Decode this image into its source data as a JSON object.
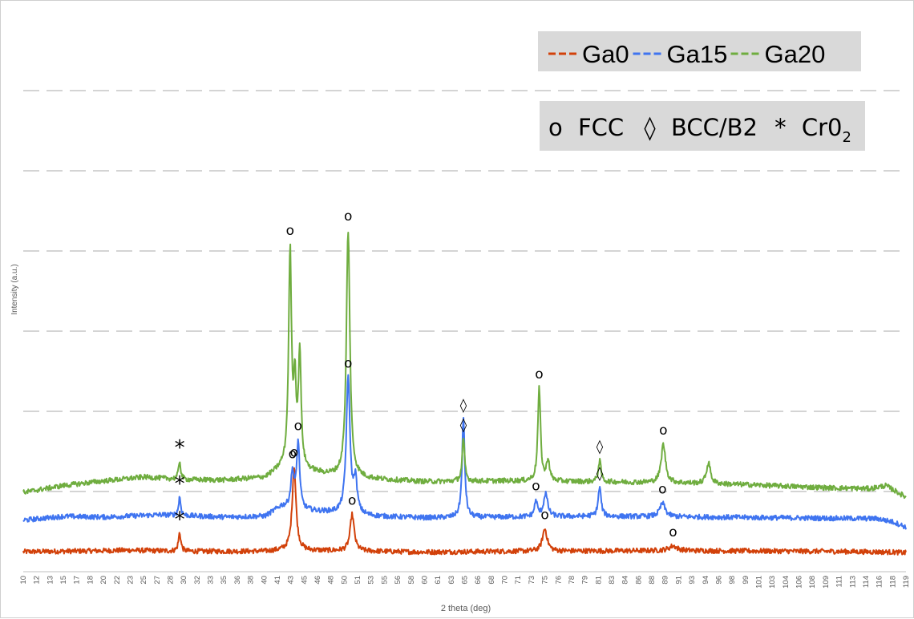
{
  "chart_data": {
    "type": "line",
    "xlabel": "2 theta (deg)",
    "ylabel": "Intensity (a.u.)",
    "x_ticks": [
      "10",
      "12",
      "13",
      "15",
      "17",
      "18",
      "20",
      "22",
      "23",
      "25",
      "27",
      "28",
      "30",
      "32",
      "33",
      "35",
      "36",
      "38",
      "40",
      "41",
      "43",
      "45",
      "46",
      "48",
      "50",
      "51",
      "53",
      "55",
      "56",
      "58",
      "60",
      "61",
      "63",
      "65",
      "66",
      "68",
      "70",
      "71",
      "73",
      "75",
      "76",
      "78",
      "79",
      "81",
      "83",
      "84",
      "86",
      "88",
      "89",
      "91",
      "93",
      "94",
      "96",
      "98",
      "99",
      "101",
      "103",
      "104",
      "106",
      "108",
      "109",
      "111",
      "113",
      "114",
      "116",
      "118",
      "119"
    ],
    "xlim": [
      10,
      119.5
    ],
    "grid": true,
    "legend": {
      "placement": "top-right",
      "items": [
        {
          "name": "Ga0",
          "color": "#d2410a"
        },
        {
          "name": "Ga15",
          "color": "#3f74f0"
        },
        {
          "name": "Ga20",
          "color": "#6fad3f"
        }
      ]
    },
    "phase_legend": {
      "fcc_symbol": "o",
      "fcc_label": "FCC",
      "bcc_symbol": "◊",
      "bcc_label": "BCC/B2",
      "cro2_symbol": "*",
      "cro2_label": "Cr0",
      "cro2_sub": "2"
    },
    "series": [
      {
        "name": "Ga0",
        "color": "#d2410a",
        "baseline": 0.0,
        "background": [
          [
            10,
            0.06
          ],
          [
            18,
            0.08
          ],
          [
            23,
            0.1
          ],
          [
            30,
            0.07
          ],
          [
            40,
            0.07
          ],
          [
            43,
            0.11
          ],
          [
            45,
            0.09
          ],
          [
            50,
            0.08
          ],
          [
            60,
            0.05
          ],
          [
            70,
            0.07
          ],
          [
            80,
            0.08
          ],
          [
            90,
            0.09
          ],
          [
            100,
            0.08
          ],
          [
            110,
            0.07
          ],
          [
            118,
            0.05
          ],
          [
            119.5,
            0.03
          ]
        ],
        "peaks": [
          {
            "x": 29.4,
            "h": 0.48,
            "w": 0.18,
            "marker": "*"
          },
          {
            "x": 43.6,
            "h": 2.18,
            "w": 0.28,
            "marker": "o"
          },
          {
            "x": 50.8,
            "h": 0.95,
            "w": 0.3,
            "marker": "o"
          },
          {
            "x": 74.7,
            "h": 0.58,
            "w": 0.35,
            "marker": "o"
          },
          {
            "x": 90.6,
            "h": 0.12,
            "w": 0.6,
            "marker": "o"
          }
        ]
      },
      {
        "name": "Ga15",
        "color": "#3f74f0",
        "baseline": 0.88,
        "background": [
          [
            10,
            0.0
          ],
          [
            15,
            0.1
          ],
          [
            20,
            0.08
          ],
          [
            27,
            0.14
          ],
          [
            35,
            0.08
          ],
          [
            40,
            0.1
          ],
          [
            42,
            0.35
          ],
          [
            45,
            0.25
          ],
          [
            48,
            0.2
          ],
          [
            53,
            0.1
          ],
          [
            60,
            0.06
          ],
          [
            70,
            0.08
          ],
          [
            80,
            0.1
          ],
          [
            90,
            0.09
          ],
          [
            100,
            0.07
          ],
          [
            110,
            0.05
          ],
          [
            116,
            0.04
          ],
          [
            118,
            -0.05
          ],
          [
            119.5,
            -0.18
          ]
        ],
        "peaks": [
          {
            "x": 29.4,
            "h": 0.48,
            "w": 0.16,
            "marker": "*"
          },
          {
            "x": 43.4,
            "h": 0.9,
            "w": 0.25,
            "marker": "o"
          },
          {
            "x": 44.1,
            "h": 1.7,
            "w": 0.22,
            "marker": "o"
          },
          {
            "x": 50.3,
            "h": 3.5,
            "w": 0.28,
            "marker": "o"
          },
          {
            "x": 51.2,
            "h": 0.85,
            "w": 0.25,
            "marker": ""
          },
          {
            "x": 64.6,
            "h": 2.55,
            "w": 0.2,
            "marker": "◊"
          },
          {
            "x": 73.6,
            "h": 0.4,
            "w": 0.22,
            "marker": "o"
          },
          {
            "x": 74.8,
            "h": 0.6,
            "w": 0.3,
            "marker": ""
          },
          {
            "x": 81.5,
            "h": 0.75,
            "w": 0.22,
            "marker": "◊"
          },
          {
            "x": 89.3,
            "h": 0.35,
            "w": 0.4,
            "marker": "o"
          }
        ]
      },
      {
        "name": "Ga20",
        "color": "#6fad3f",
        "baseline": 1.6,
        "background": [
          [
            10,
            0.0
          ],
          [
            15,
            0.18
          ],
          [
            20,
            0.3
          ],
          [
            25,
            0.4
          ],
          [
            30,
            0.33
          ],
          [
            35,
            0.32
          ],
          [
            40,
            0.38
          ],
          [
            42,
            0.6
          ],
          [
            45,
            0.55
          ],
          [
            48,
            0.45
          ],
          [
            53,
            0.35
          ],
          [
            60,
            0.28
          ],
          [
            70,
            0.3
          ],
          [
            80,
            0.28
          ],
          [
            90,
            0.25
          ],
          [
            100,
            0.2
          ],
          [
            110,
            0.12
          ],
          [
            115,
            0.1
          ],
          [
            117,
            0.18
          ],
          [
            118,
            0.06
          ],
          [
            119.5,
            -0.12
          ]
        ],
        "peaks": [
          {
            "x": 29.4,
            "h": 0.48,
            "w": 0.16,
            "marker": "*"
          },
          {
            "x": 43.1,
            "h": 5.6,
            "w": 0.22,
            "marker": "o"
          },
          {
            "x": 43.7,
            "h": 2.0,
            "w": 0.18,
            "marker": ""
          },
          {
            "x": 44.3,
            "h": 3.0,
            "w": 0.2,
            "marker": ""
          },
          {
            "x": 50.3,
            "h": 6.4,
            "w": 0.26,
            "marker": "o"
          },
          {
            "x": 64.6,
            "h": 1.1,
            "w": 0.18,
            "marker": "◊"
          },
          {
            "x": 74.0,
            "h": 2.4,
            "w": 0.2,
            "marker": "o"
          },
          {
            "x": 75.1,
            "h": 0.55,
            "w": 0.22,
            "marker": ""
          },
          {
            "x": 81.5,
            "h": 0.55,
            "w": 0.2,
            "marker": "◊"
          },
          {
            "x": 89.4,
            "h": 1.0,
            "w": 0.32,
            "marker": "o"
          },
          {
            "x": 95.0,
            "h": 0.55,
            "w": 0.3,
            "marker": ""
          }
        ]
      }
    ]
  }
}
